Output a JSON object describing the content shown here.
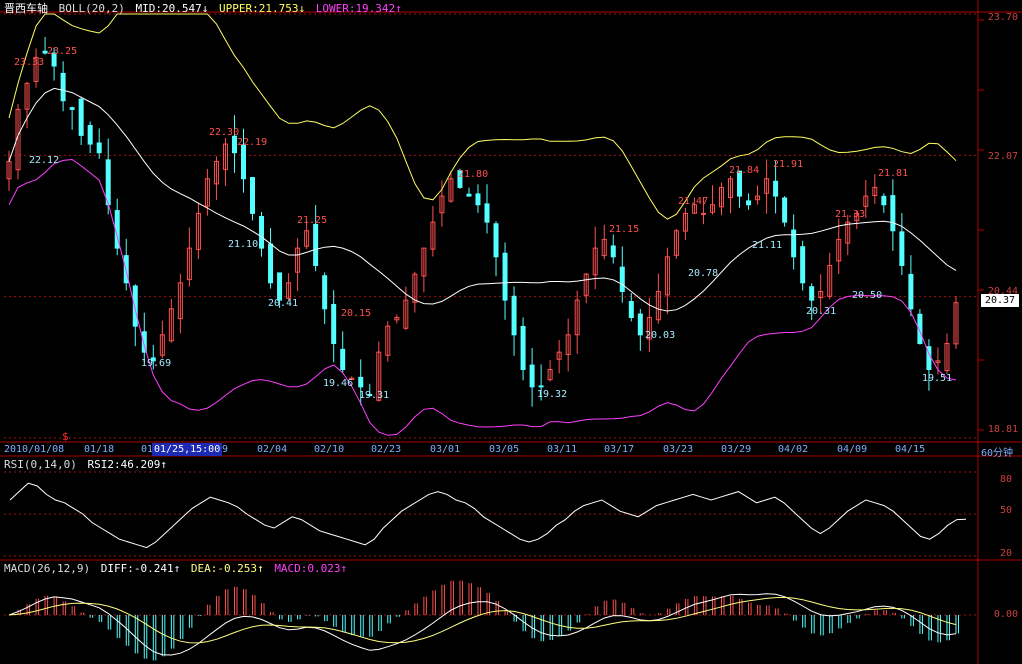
{
  "header": {
    "stock_name": "晋西车轴",
    "boll": {
      "label": "BOLL(20,2)",
      "mid": "MID:20.547",
      "mid_arrow": "↓",
      "upper": "UPPER:21.753",
      "upper_arrow": "↓",
      "lower": "LOWER:19.342",
      "lower_arrow": "↑"
    },
    "rsi": {
      "label": "RSI(0,14,0)",
      "rsi2": "RSI2:46.209",
      "rsi2_arrow": "↑"
    },
    "macd": {
      "label": "MACD(26,12,9)",
      "diff": "DIFF:-0.241",
      "diff_arrow": "↑",
      "dea": "DEA:-0.253",
      "dea_arrow": "↑",
      "macd": "MACD:0.023",
      "macd_arrow": "↑"
    }
  },
  "price_axis": {
    "ticks": [
      "23.70",
      "22.07",
      "20.44",
      "18.81"
    ],
    "current": "20.37"
  },
  "rsi_axis": {
    "ticks": [
      "80",
      "50",
      "20"
    ]
  },
  "macd_axis": {
    "ticks": [
      "0.00"
    ]
  },
  "date_axis": {
    "labels": [
      "2010/01/08",
      "01/18",
      "01",
      "9",
      "02/04",
      "02/10",
      "02/23",
      "03/01",
      "03/05",
      "03/11",
      "03/17",
      "03/23",
      "03/29",
      "04/02",
      "04/09",
      "04/15"
    ],
    "selected": "01/25,15:00",
    "period": "60分钟",
    "marker": "$"
  },
  "annotations": {
    "highs": [
      "23.33",
      "23.25",
      "22.30",
      "22.19",
      "21.25",
      "20.15",
      "21.80",
      "21.15",
      "21.47",
      "21.84",
      "21.91",
      "21.33",
      "21.81"
    ],
    "lows": [
      "22.12",
      "21.10",
      "19.69",
      "20.41",
      "19.46",
      "19.31",
      "19.32",
      "20.78",
      "21.11",
      "20.03",
      "20.50",
      "20.31",
      "19.51"
    ]
  },
  "colors": {
    "up": "#ff5050",
    "down": "#54ffff",
    "upper": "#ffff60",
    "mid": "#ffffff",
    "lower": "#ff40ff",
    "grid": "#a01010",
    "axis": "#b00000"
  },
  "chart_data": [
    {
      "type": "candlestick",
      "title": "晋西车轴 BOLL(20,2)",
      "ylim": [
        18.81,
        23.7
      ],
      "close_approx": [
        22.0,
        22.6,
        22.9,
        23.2,
        23.25,
        23.1,
        22.7,
        22.6,
        22.3,
        22.2,
        22.1,
        21.5,
        21.0,
        20.6,
        20.1,
        19.8,
        19.7,
        20.0,
        20.3,
        20.6,
        21.0,
        21.4,
        21.8,
        22.0,
        22.2,
        22.1,
        21.8,
        21.4,
        21.0,
        20.6,
        20.4,
        20.6,
        21.0,
        21.2,
        20.8,
        20.3,
        19.9,
        19.6,
        19.5,
        19.4,
        19.3,
        19.8,
        20.1,
        20.2,
        20.4,
        20.7,
        21.0,
        21.3,
        21.6,
        21.8,
        21.7,
        21.6,
        21.5,
        21.3,
        20.9,
        20.4,
        20.0,
        19.6,
        19.4,
        19.4,
        19.6,
        19.8,
        20.0,
        20.4,
        20.7,
        21.0,
        21.1,
        20.9,
        20.5,
        20.2,
        20.0,
        20.2,
        20.5,
        20.9,
        21.2,
        21.4,
        21.5,
        21.4,
        21.5,
        21.7,
        21.8,
        21.6,
        21.5,
        21.6,
        21.8,
        21.6,
        21.3,
        20.9,
        20.6,
        20.4,
        20.5,
        20.8,
        21.1,
        21.3,
        21.4,
        21.6,
        21.7,
        21.5,
        21.2,
        20.8,
        20.3,
        19.9,
        19.6,
        19.7,
        19.9,
        20.37
      ],
      "series": [
        {
          "name": "UPPER",
          "final_value": 21.753
        },
        {
          "name": "MID",
          "final_value": 20.547
        },
        {
          "name": "LOWER",
          "final_value": 19.342
        }
      ]
    },
    {
      "type": "line",
      "title": "RSI(0,14,0)",
      "ylim": [
        20,
        80
      ],
      "series": [
        {
          "name": "RSI2",
          "final_value": 46.209,
          "values": [
            60,
            66,
            72,
            70,
            64,
            60,
            58,
            54,
            50,
            44,
            40,
            36,
            32,
            30,
            28,
            26,
            30,
            36,
            42,
            48,
            54,
            58,
            62,
            60,
            58,
            55,
            50,
            46,
            42,
            40,
            44,
            48,
            46,
            42,
            38,
            36,
            34,
            32,
            30,
            28,
            32,
            40,
            46,
            52,
            56,
            60,
            64,
            66,
            64,
            60,
            58,
            54,
            48,
            44,
            40,
            36,
            32,
            30,
            32,
            36,
            42,
            46,
            52,
            56,
            58,
            60,
            56,
            52,
            50,
            48,
            52,
            56,
            58,
            60,
            62,
            64,
            62,
            60,
            62,
            64,
            66,
            62,
            58,
            60,
            62,
            58,
            52,
            46,
            40,
            36,
            40,
            46,
            52,
            56,
            60,
            58,
            56,
            52,
            46,
            40,
            34,
            32,
            36,
            42,
            46,
            46.209
          ]
        }
      ]
    },
    {
      "type": "bar+line",
      "title": "MACD(26,12,9)",
      "series": [
        {
          "name": "DIFF",
          "final_value": -0.241
        },
        {
          "name": "DEA",
          "final_value": -0.253
        },
        {
          "name": "MACD",
          "final_value": 0.023
        }
      ]
    }
  ]
}
